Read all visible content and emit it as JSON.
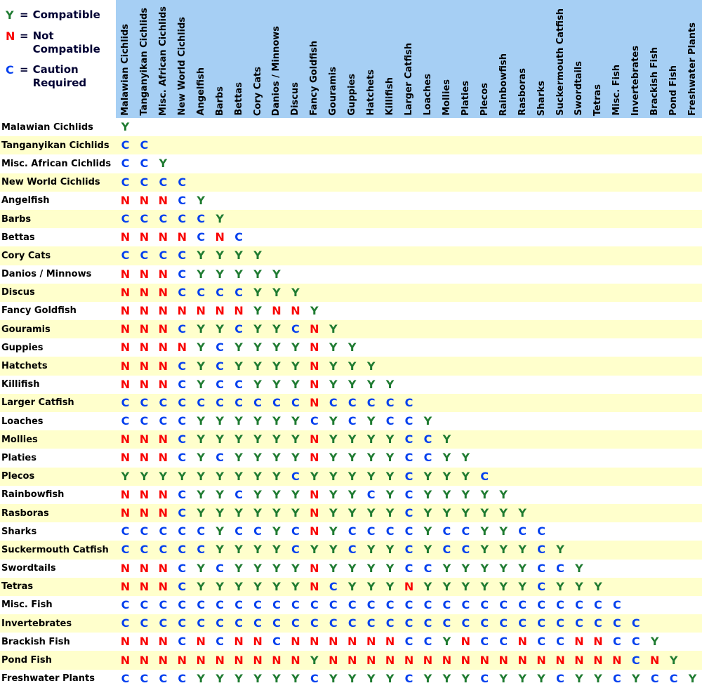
{
  "legend": {
    "equals_sign": "=",
    "items": [
      {
        "symbol": "Y",
        "label": "Compatible",
        "color": "#1F7B31"
      },
      {
        "symbol": "N",
        "label": "Not Compatible",
        "color": "#F90505"
      },
      {
        "symbol": "C",
        "label": "Caution Required",
        "color": "#0440EE"
      }
    ]
  },
  "colors": {
    "header_background": "#A6CFF4",
    "row_stripe_yellow": "#FFFFCC",
    "row_stripe_white": "#FFFFFF",
    "compatible_green": "#1F7B31",
    "not_compatible_red": "#F90505",
    "caution_blue": "#0440EE",
    "label_text": "#000000",
    "legend_text": "#000033"
  },
  "chart_data": {
    "type": "heatmap",
    "description": "Lower-triangular species compatibility matrix; cell [row][col] is compatibility of row species with column species",
    "value_legend": {
      "Y": "Compatible",
      "N": "Not Compatible",
      "C": "Caution Required"
    },
    "categories": [
      "Malawian Cichlids",
      "Tanganyikan Cichlids",
      "Misc. African Cichlids",
      "New World Cichlids",
      "Angelfish",
      "Barbs",
      "Bettas",
      "Cory Cats",
      "Danios / Minnows",
      "Discus",
      "Fancy Goldfish",
      "Gouramis",
      "Guppies",
      "Hatchets",
      "Killifish",
      "Larger Catfish",
      "Loaches",
      "Mollies",
      "Platies",
      "Plecos",
      "Rainbowfish",
      "Rasboras",
      "Sharks",
      "Suckermouth Catfish",
      "Swordtails",
      "Tetras",
      "Misc. Fish",
      "Invertebrates",
      "Brackish Fish",
      "Pond Fish",
      "Freshwater Plants"
    ],
    "rows": [
      "Y",
      "CC",
      "CCY",
      "CCCC",
      "NNNCY",
      "CCCCCY",
      "NNNNCNC",
      "CCCCYYYY",
      "NNNCYYYYY",
      "NNNCCCCYYY",
      "NNNNNNNYNNY",
      "NNNCYYCYYCNY",
      "NNNNYCYYYYNYY",
      "NNNCYCYYYYNYYY",
      "NNNCYCCYYYNYYYY",
      "CCCCCCCCCCNCCCCC",
      "CCCCYYYYYYCYCYCCY",
      "NNNCYYYYYYNYYYYCCY",
      "NNNCYCYYYYNYYYYCCYY",
      "YYYYYYYYYCYYYYYCYYYC",
      "NNNCYYCYYYNYYCYCYYYYY",
      "NNNCYYYYYYNYYYYCYYYYYY",
      "CCCCCYCCYCNYCCCCYCCYYCC",
      "CCCCCYYYYCYYCYYCYCCYYYCY",
      "NNNCYCYYYYNYYYYCCYYYYYCCY",
      "NNNCYYYYYYNCYYYNYYYYYYCYYY",
      "CCCCCCCCCCCCCCCCCCCCCCCCCCC",
      "CCCCCCCCCCCCCCCCCCCCCCCCCCCC",
      "NNNCNCNNCNNNNNNCCYNCCNCCNNCCY",
      "NNNNNNNNNNYNNNNNNNNNNNNNNNNCNY",
      "CCCCYYYYYYCYYYYCYYYCYYYCYYCYCCY"
    ]
  }
}
